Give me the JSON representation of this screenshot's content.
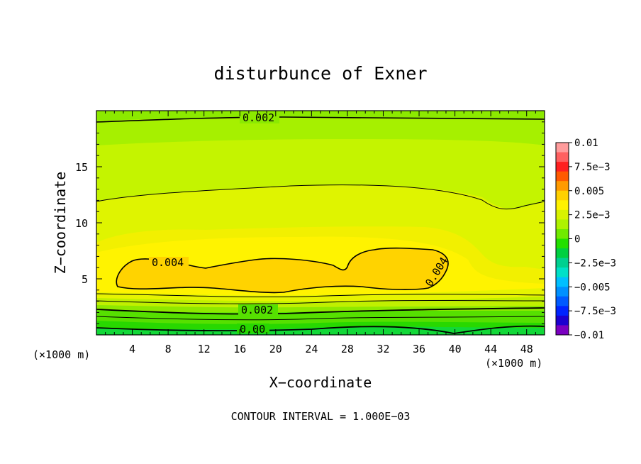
{
  "chart_data": {
    "type": "contour",
    "title": "disturbunce of Exner",
    "xlabel": "X−coordinate",
    "ylabel": "Z−coordinate",
    "x_unit": "(×1000 m)",
    "y_unit": "(×1000 m)",
    "footer": "CONTOUR INTERVAL = 1.000E−03",
    "xlim": [
      0,
      50
    ],
    "ylim": [
      0,
      20
    ],
    "x_ticks": [
      4,
      8,
      12,
      16,
      20,
      24,
      28,
      32,
      36,
      40,
      44,
      48
    ],
    "y_ticks": [
      5,
      10,
      15
    ],
    "colorbar": {
      "labels": [
        "0.01",
        "7.5e−3",
        "0.005",
        "2.5e−3",
        "0",
        "−2.5e−3",
        "−0.005",
        "−7.5e−3",
        "−0.01"
      ],
      "colors": [
        "#ff9c9c",
        "#ff6060",
        "#ff2020",
        "#ff5a00",
        "#ff9a00",
        "#ffd000",
        "#fff200",
        "#d8f200",
        "#aef200",
        "#70ea00",
        "#22e000",
        "#00d040",
        "#00d090",
        "#00e0c8",
        "#00bfff",
        "#0090ff",
        "#005aff",
        "#0024ff",
        "#1c00d0",
        "#7a00c0"
      ]
    },
    "contour_labels": [
      {
        "text": "0.002",
        "x": 20.5,
        "z": 19.0
      },
      {
        "text": "0.004",
        "x": 7.5,
        "z": 6.3
      },
      {
        "text": "0.004",
        "x": 38.3,
        "z": 5.6
      },
      {
        "text": "0.002",
        "x": 20.5,
        "z": 2.3
      },
      {
        "text": "0.00",
        "x": 20,
        "z": 0.5
      }
    ]
  }
}
